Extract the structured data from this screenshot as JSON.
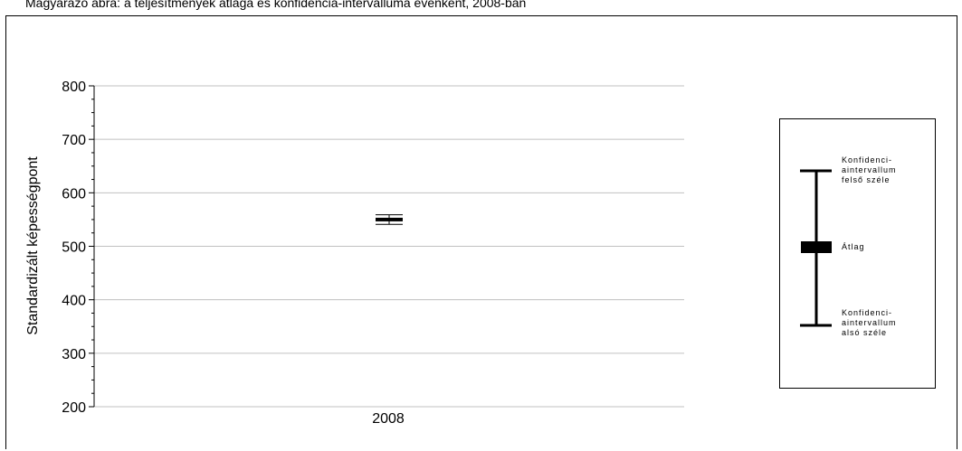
{
  "page": {
    "title": "Magyarázó ábra: a teljesítmények átlaga és konfidencia-intervalluma évenként, 2008-ban"
  },
  "chart_data": {
    "type": "errorbar",
    "title": "",
    "xlabel": "",
    "ylabel": "Standardizált képességpont",
    "ylim": [
      200,
      800
    ],
    "yticks": [
      200,
      300,
      400,
      500,
      600,
      700,
      800
    ],
    "ytick_labels": [
      "200",
      "300",
      "400",
      "500",
      "600",
      "700",
      "800"
    ],
    "categories": [
      "2008"
    ],
    "series": [
      {
        "mean": 550,
        "ci_lower": 541,
        "ci_upper": 559
      }
    ],
    "grid": true,
    "legend_position": "right"
  },
  "legend": {
    "upper_label": "Konfidenci-\naintervallum\nfelső széle",
    "mean_label": "Átlag",
    "lower_label": "Konfidenci-\naintervallum\nalsó széle"
  }
}
